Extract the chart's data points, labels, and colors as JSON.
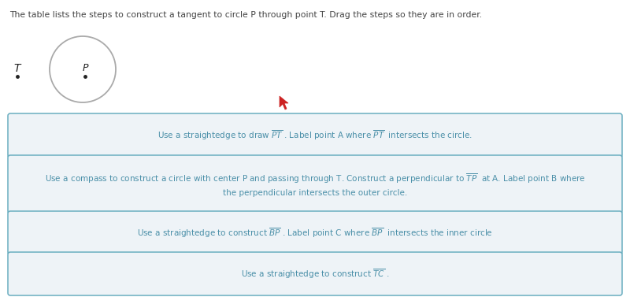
{
  "title_text": "The table lists the steps to construct a tangent to circle P through point T. Drag the steps so they are in order.",
  "bg_color": "#ffffff",
  "box_bg_color": "#eef3f7",
  "box_edge_color": "#6aaec0",
  "box_text_color": "#4a8fa8",
  "title_color": "#444444",
  "circle_color": "#aaaaaa",
  "rows": [
    "Use a straightedge to draw $\\overline{PT}$ . Label point A where $\\overline{PT}$  intersects the circle.",
    "Use a compass to construct a circle with center P and passing through T. Construct a perpendicular to $\\overline{TP}$  at A. Label point B where\nthe perpendicular intersects the outer circle.",
    "Use a straightedge to construct $\\overline{BP}$ . Label point C where $\\overline{BP}$  intersects the inner circle",
    "Use a straightedge to construct $\\overline{TC}$ ."
  ],
  "figsize": [
    8.0,
    3.77
  ],
  "dpi": 100
}
